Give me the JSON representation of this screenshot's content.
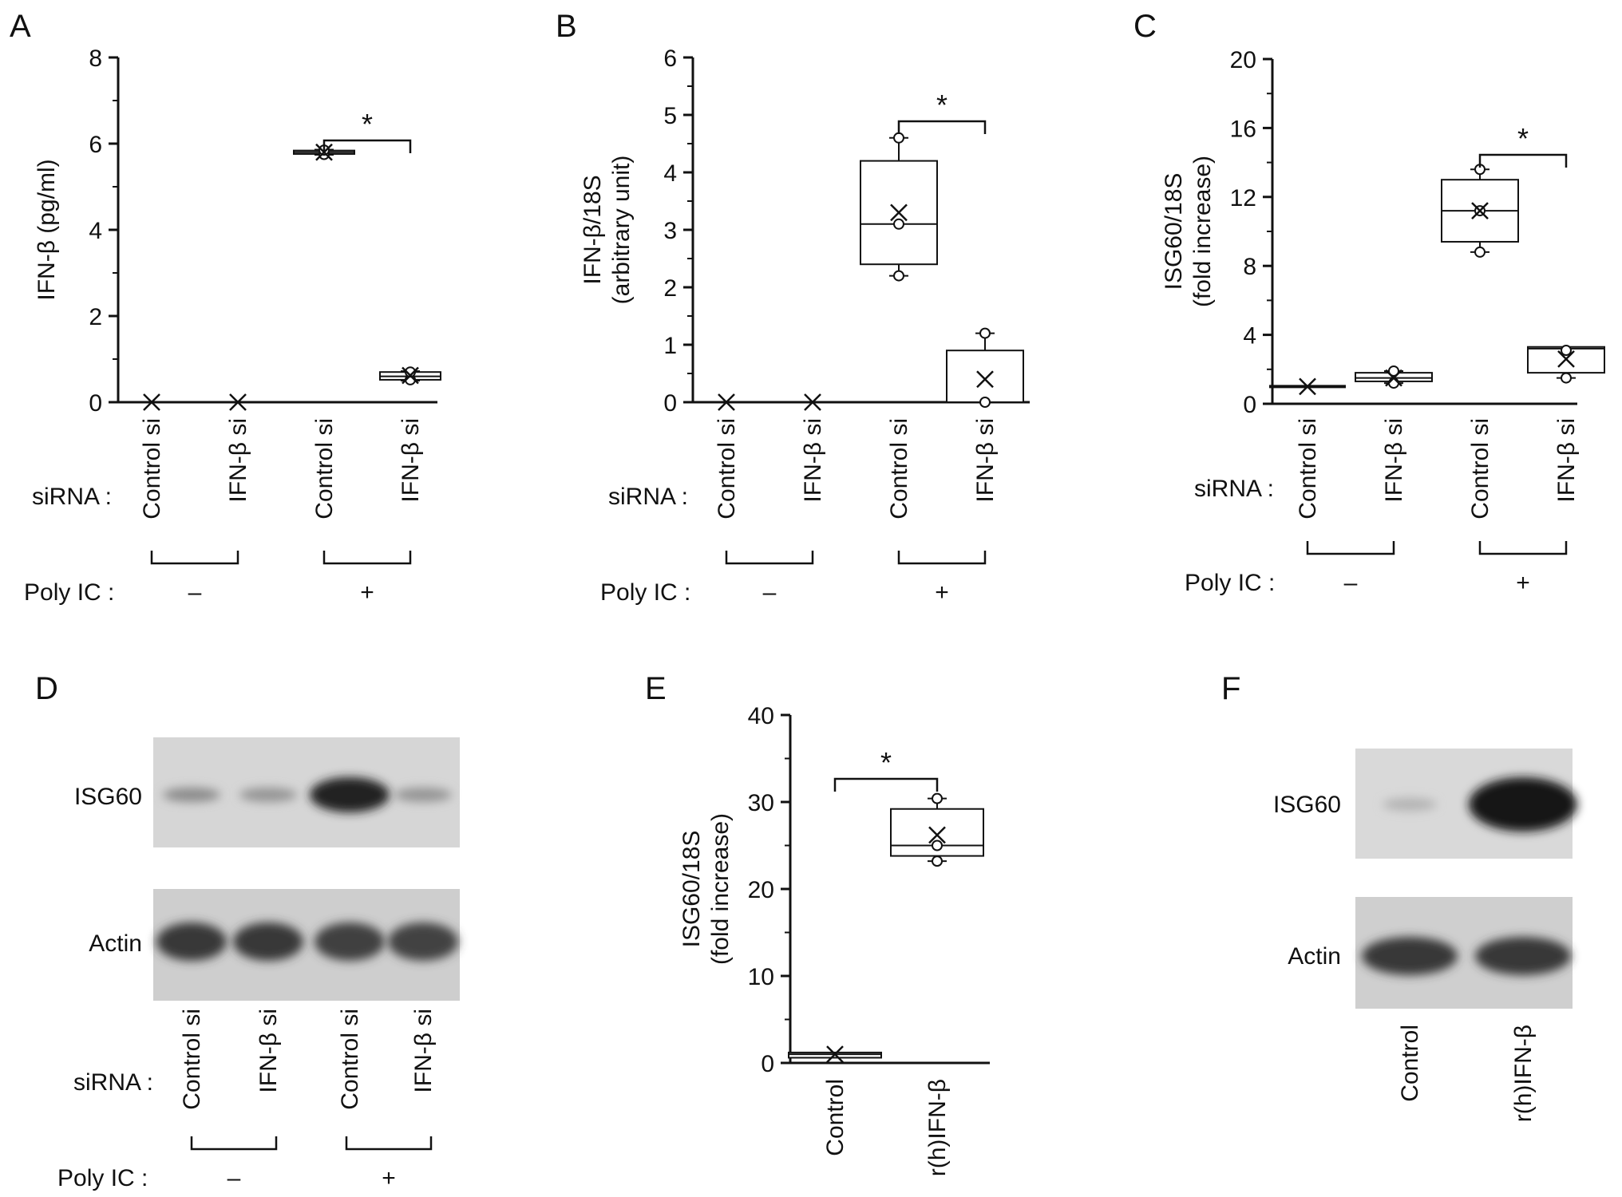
{
  "panels": {
    "A": "A",
    "B": "B",
    "C": "C",
    "D": "D",
    "E": "E",
    "F": "F"
  },
  "labels": {
    "sirna": "siRNA :",
    "polyic": "Poly IC :",
    "minus": "–",
    "plus": "+",
    "star": "*",
    "isg60": "ISG60",
    "actin": "Actin"
  },
  "chart_data": [
    {
      "id": "A",
      "type": "box",
      "ylabel": "IFN-β (pg/ml)",
      "ylabel2": "",
      "ylim": [
        0,
        8
      ],
      "yticks": [
        0,
        2,
        4,
        6,
        8
      ],
      "categories": [
        "Control si",
        "IFN-β si",
        "Control si",
        "IFN-β si"
      ],
      "polyic": [
        "–",
        "+"
      ],
      "boxes": [
        {
          "q1": 0.0,
          "median": 0.0,
          "q3": 0.0,
          "min": 0.0,
          "max": 0.0,
          "mean": 0.0,
          "points": []
        },
        {
          "q1": 0.0,
          "median": 0.0,
          "q3": 0.0,
          "min": 0.0,
          "max": 0.0,
          "mean": 0.0,
          "points": []
        },
        {
          "q1": 5.76,
          "median": 5.8,
          "q3": 5.84,
          "min": 5.74,
          "max": 5.86,
          "mean": 5.8,
          "points": [
            5.75,
            5.85
          ]
        },
        {
          "q1": 0.52,
          "median": 0.6,
          "q3": 0.7,
          "min": 0.5,
          "max": 0.72,
          "mean": 0.62,
          "points": [
            0.52,
            0.7
          ]
        }
      ],
      "significance": {
        "from": 2,
        "to": 3,
        "label": "*"
      }
    },
    {
      "id": "B",
      "type": "box",
      "ylabel": "IFN-β/18S",
      "ylabel2": "(arbitrary unit)",
      "ylim": [
        0,
        6
      ],
      "yticks": [
        0,
        1,
        2,
        3,
        4,
        5,
        6
      ],
      "categories": [
        "Control si",
        "IFN-β si",
        "Control si",
        "IFN-β si"
      ],
      "polyic": [
        "–",
        "+"
      ],
      "boxes": [
        {
          "q1": 0.0,
          "median": 0.0,
          "q3": 0.0,
          "min": 0.0,
          "max": 0.0,
          "mean": 0.0,
          "points": []
        },
        {
          "q1": 0.0,
          "median": 0.0,
          "q3": 0.0,
          "min": 0.0,
          "max": 0.0,
          "mean": 0.0,
          "points": []
        },
        {
          "q1": 2.4,
          "median": 3.1,
          "q3": 4.2,
          "min": 2.2,
          "max": 4.6,
          "mean": 3.3,
          "points": [
            2.2,
            3.1,
            4.6
          ]
        },
        {
          "q1": 0.0,
          "median": 0.0,
          "q3": 0.9,
          "min": 0.0,
          "max": 1.2,
          "mean": 0.4,
          "points": [
            0.0,
            1.2
          ]
        }
      ],
      "significance": {
        "from": 2,
        "to": 3,
        "label": "*"
      }
    },
    {
      "id": "C",
      "type": "box",
      "ylabel": "ISG60/18S",
      "ylabel2": "(fold increase)",
      "ylim": [
        0,
        20
      ],
      "yticks": [
        0,
        4,
        8,
        12,
        16,
        20
      ],
      "categories": [
        "Control si",
        "IFN-β si",
        "Control si",
        "IFN-β si"
      ],
      "polyic": [
        "–",
        "+"
      ],
      "boxes": [
        {
          "q1": 1.0,
          "median": 1.0,
          "q3": 1.0,
          "min": 1.0,
          "max": 1.0,
          "mean": 1.0,
          "points": []
        },
        {
          "q1": 1.3,
          "median": 1.5,
          "q3": 1.8,
          "min": 1.2,
          "max": 1.9,
          "mean": 1.5,
          "points": [
            1.2,
            1.9
          ]
        },
        {
          "q1": 9.4,
          "median": 11.2,
          "q3": 13.0,
          "min": 8.8,
          "max": 13.6,
          "mean": 11.2,
          "points": [
            8.8,
            11.2,
            13.6
          ]
        },
        {
          "q1": 1.8,
          "median": 3.2,
          "q3": 3.3,
          "min": 1.5,
          "max": 3.3,
          "mean": 2.6,
          "points": [
            1.5,
            3.1
          ]
        }
      ],
      "significance": {
        "from": 2,
        "to": 3,
        "label": "*"
      }
    },
    {
      "id": "E",
      "type": "box",
      "ylabel": "ISG60/18S",
      "ylabel2": "(fold increase)",
      "ylim": [
        0,
        40
      ],
      "yticks": [
        0,
        10,
        20,
        30,
        40
      ],
      "categories": [
        "Control",
        "r(h)IFN-β"
      ],
      "polyic": [],
      "boxes": [
        {
          "q1": 0.6,
          "median": 1.0,
          "q3": 1.2,
          "min": 0.6,
          "max": 1.2,
          "mean": 1.0,
          "points": []
        },
        {
          "q1": 23.8,
          "median": 25.0,
          "q3": 29.2,
          "min": 23.2,
          "max": 30.4,
          "mean": 26.2,
          "points": [
            23.2,
            25.0,
            30.4
          ]
        }
      ],
      "significance": {
        "from": 0,
        "to": 1,
        "label": "*"
      }
    }
  ],
  "blots": [
    {
      "id": "D",
      "bands": [
        "ISG60",
        "Actin"
      ],
      "lanes": [
        "Control si",
        "IFN-β si",
        "Control si",
        "IFN-β si"
      ],
      "isg60_intensity": [
        0.35,
        0.3,
        0.95,
        0.3
      ],
      "actin_intensity": [
        0.85,
        0.85,
        0.8,
        0.78
      ],
      "polyic": [
        "–",
        "+"
      ]
    },
    {
      "id": "F",
      "bands": [
        "ISG60",
        "Actin"
      ],
      "lanes": [
        "Control",
        "r(h)IFN-β"
      ],
      "isg60_intensity": [
        0.12,
        1.0
      ],
      "actin_intensity": [
        0.85,
        0.85
      ]
    }
  ]
}
